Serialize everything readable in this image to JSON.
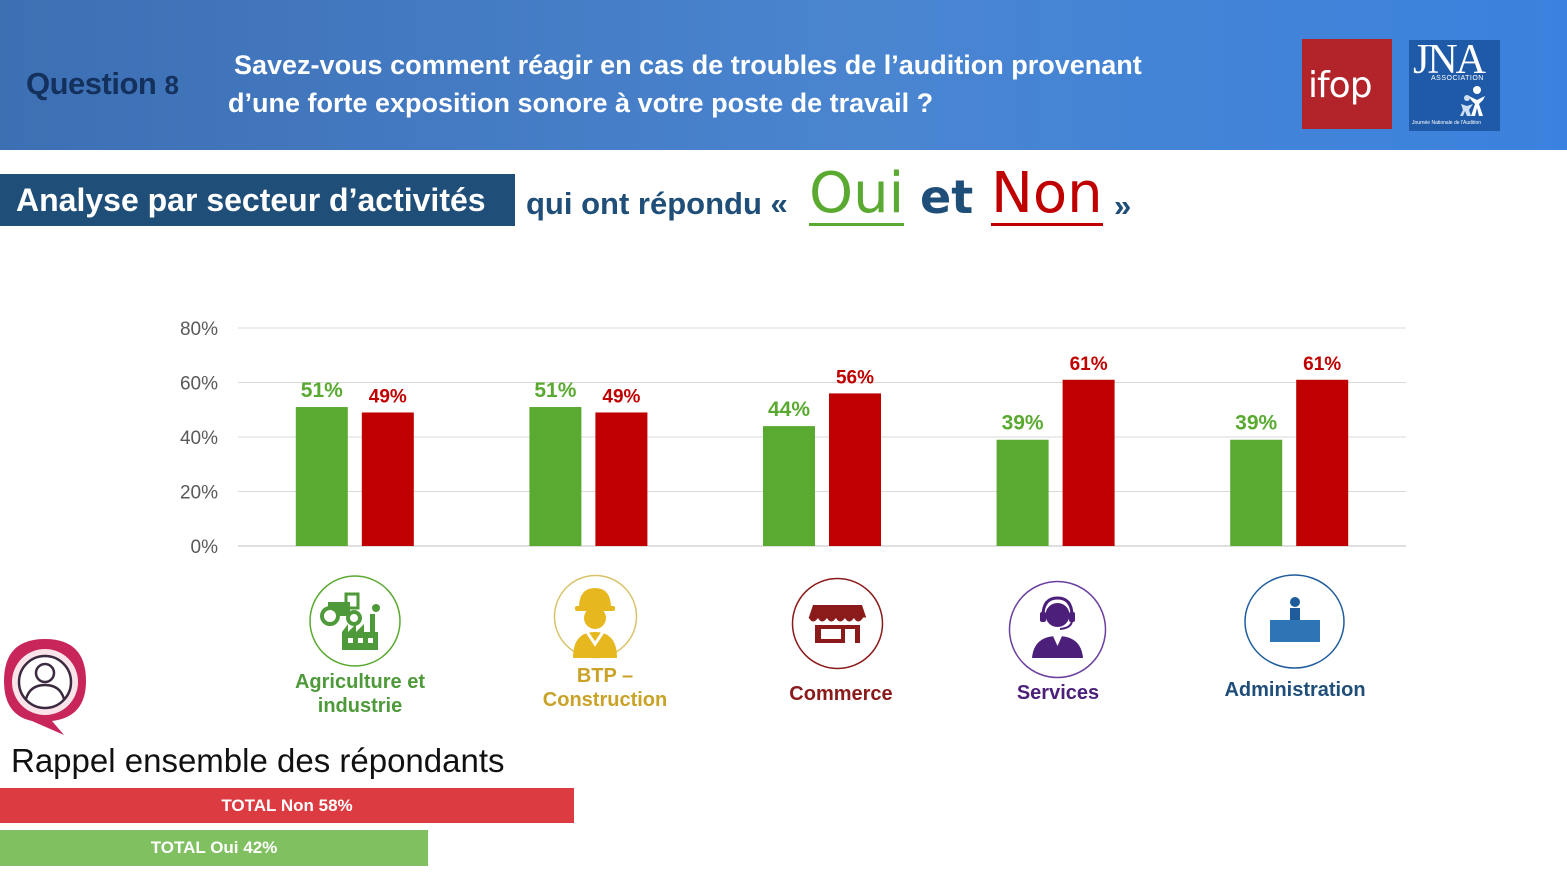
{
  "header": {
    "question_label": "Question",
    "question_number": "8",
    "question_line1": "Savez-vous comment réagir en cas de troubles de l’audition provenant",
    "question_line2": "d’une forte exposition sonore à votre poste de travail ?",
    "logo_ifop": "ifop",
    "logo_jna": "JNA",
    "logo_jna_assoc": "ASSOCIATION",
    "logo_jna_footer": "Journée Nationale de l'Audition"
  },
  "subtitle": {
    "box_text": "Analyse par secteur d’activités",
    "rest": "qui ont répondu «",
    "oui": "Oui",
    "et": "et",
    "non": "Non",
    "close": "»"
  },
  "colors": {
    "oui": "#5aaa32",
    "non": "#c00000",
    "header_dark": "#14305c",
    "subtitle_bg": "#1f4e79"
  },
  "chart_data": {
    "type": "bar",
    "categories": [
      "Agriculture et industrie",
      "BTP – Construction",
      "Commerce",
      "Services",
      "Administration"
    ],
    "series": [
      {
        "name": "Oui",
        "values": [
          51,
          51,
          44,
          39,
          39
        ],
        "labels": [
          "51%",
          "51%",
          "44%",
          "39%",
          "39%"
        ],
        "color": "#5aaa32"
      },
      {
        "name": "Non",
        "values": [
          49,
          49,
          56,
          61,
          61
        ],
        "labels": [
          "49%",
          "49%",
          "56%",
          "61%",
          "61%"
        ],
        "color": "#c00000"
      }
    ],
    "ylim": [
      0,
      80
    ],
    "yticks": [
      0,
      20,
      40,
      60,
      80
    ],
    "ytick_labels": [
      "0%",
      "20%",
      "40%",
      "60%",
      "80%"
    ],
    "grid": true
  },
  "sectors": [
    {
      "line1": "Agriculture et",
      "line2": "industrie",
      "icon": "tractor-factory-icon",
      "color": "#4e9a3a"
    },
    {
      "line1": "BTP –",
      "line2": "Construction",
      "icon": "construction-worker-icon",
      "color": "#c9a227"
    },
    {
      "line1": "Commerce",
      "line2": "",
      "icon": "shop-icon",
      "color": "#8b1a1a"
    },
    {
      "line1": "Services",
      "line2": "",
      "icon": "headset-operator-icon",
      "color": "#4b1f7a"
    },
    {
      "line1": "Administration",
      "line2": "",
      "icon": "office-desk-icon",
      "color": "#1f4e79"
    }
  ],
  "recap": {
    "title": "Rappel ensemble des répondants",
    "non_label": "TOTAL Non 58%",
    "non_value": 58,
    "oui_label": "TOTAL Oui 42%",
    "oui_value": 42
  }
}
